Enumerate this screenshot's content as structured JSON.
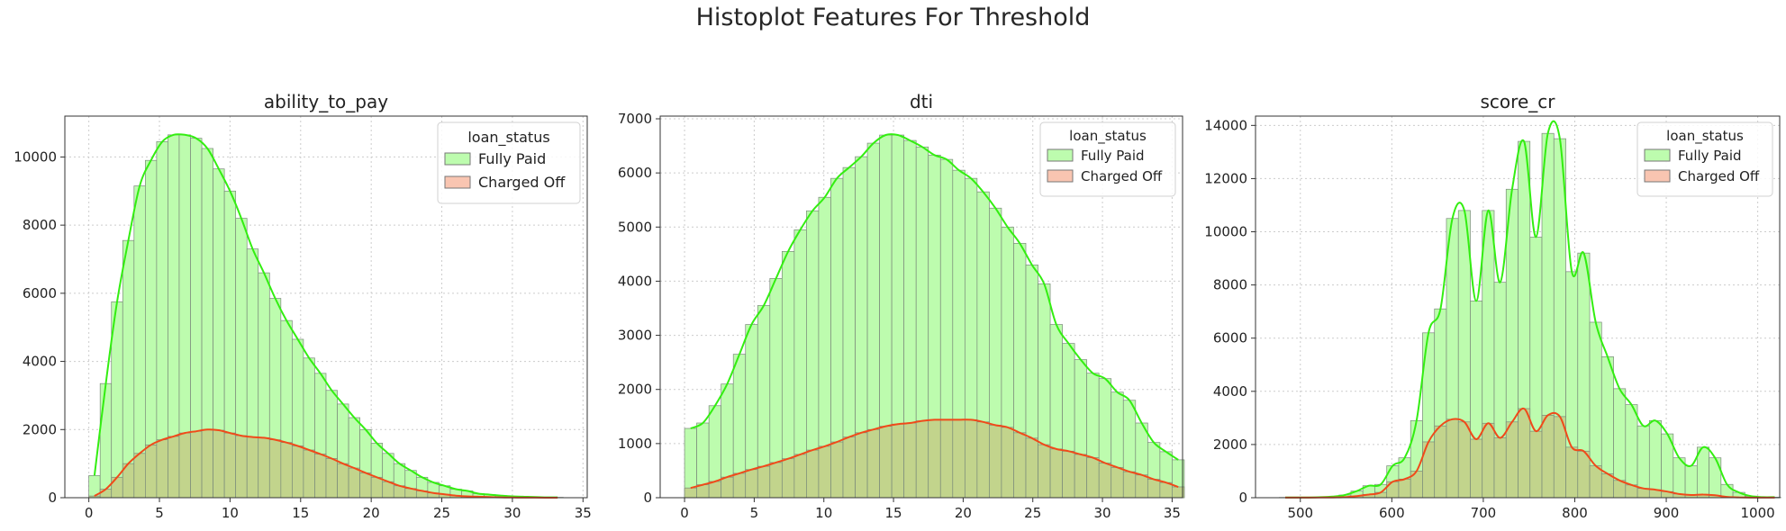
{
  "figure": {
    "title": "Histoplot Features For Threshold"
  },
  "colors": {
    "fully_paid_fill": "#bdfcae",
    "fully_paid_line": "#33ee11",
    "charged_off_fill": "#f9c5b1",
    "charged_off_line": "#f04a1a",
    "overlap_fill": "#c2d48c",
    "bar_edge": "#7a8a7a",
    "grid": "#cccccc"
  },
  "chart_data": [
    {
      "type": "histogram",
      "title": "ability_to_pay",
      "xlabel": "",
      "ylabel": "",
      "xlim": [
        -1.7,
        35.3
      ],
      "ylim": [
        0,
        11200
      ],
      "xticks": [
        0,
        5,
        10,
        15,
        20,
        25,
        30,
        35
      ],
      "yticks": [
        0,
        2000,
        4000,
        6000,
        8000,
        10000
      ],
      "bin_start": 0,
      "bin_width": 0.8,
      "grid": true,
      "legend": {
        "title": "loan_status",
        "placement": "upper right",
        "entries": [
          "Fully Paid",
          "Charged Off"
        ]
      },
      "series": [
        {
          "name": "Fully Paid",
          "values": [
            650,
            3350,
            5750,
            7550,
            9150,
            9900,
            10450,
            10650,
            10650,
            10550,
            10250,
            9650,
            9000,
            8200,
            7300,
            6600,
            5850,
            5200,
            4650,
            4100,
            3650,
            3150,
            2750,
            2350,
            2000,
            1600,
            1300,
            1000,
            800,
            600,
            450,
            350,
            250,
            200,
            120,
            90,
            60,
            40,
            30,
            20,
            10,
            10
          ]
        },
        {
          "name": "Charged Off",
          "values": [
            50,
            250,
            600,
            1000,
            1300,
            1550,
            1700,
            1800,
            1900,
            1950,
            2000,
            1980,
            1900,
            1820,
            1780,
            1760,
            1700,
            1620,
            1520,
            1400,
            1280,
            1150,
            1000,
            870,
            730,
            600,
            470,
            350,
            270,
            200,
            140,
            100,
            60,
            40,
            30,
            20,
            10,
            5,
            3,
            2,
            1,
            1
          ]
        }
      ]
    },
    {
      "type": "histogram",
      "title": "dti",
      "xlabel": "",
      "ylabel": "",
      "xlim": [
        -1.75,
        35.75
      ],
      "ylim": [
        0,
        7050
      ],
      "xticks": [
        0,
        5,
        10,
        15,
        20,
        25,
        30,
        35
      ],
      "yticks": [
        0,
        1000,
        2000,
        3000,
        4000,
        5000,
        6000,
        7000
      ],
      "bin_start": 0,
      "bin_width": 0.875,
      "grid": true,
      "legend": {
        "title": "loan_status",
        "placement": "upper right",
        "entries": [
          "Fully Paid",
          "Charged Off"
        ]
      },
      "series": [
        {
          "name": "Fully Paid",
          "values": [
            1280,
            1380,
            1700,
            2100,
            2650,
            3200,
            3550,
            4050,
            4550,
            4950,
            5300,
            5550,
            5900,
            6100,
            6300,
            6550,
            6700,
            6700,
            6600,
            6480,
            6330,
            6250,
            6050,
            5900,
            5650,
            5350,
            5000,
            4700,
            4300,
            3950,
            3200,
            2850,
            2550,
            2300,
            2200,
            1950,
            1800,
            1380,
            1020,
            850,
            700
          ]
        },
        {
          "name": "Charged Off",
          "values": [
            180,
            240,
            300,
            380,
            450,
            520,
            580,
            650,
            720,
            800,
            880,
            950,
            1030,
            1120,
            1200,
            1260,
            1320,
            1360,
            1380,
            1420,
            1440,
            1440,
            1440,
            1440,
            1400,
            1340,
            1300,
            1200,
            1100,
            980,
            900,
            860,
            800,
            740,
            640,
            560,
            480,
            420,
            340,
            280,
            200
          ]
        }
      ]
    },
    {
      "type": "histogram",
      "title": "score_cr",
      "xlabel": "",
      "ylabel": "",
      "xlim": [
        451,
        1024
      ],
      "ylim": [
        0,
        14350
      ],
      "xticks": [
        500,
        600,
        700,
        800,
        900,
        1000
      ],
      "yticks": [
        0,
        2000,
        4000,
        6000,
        8000,
        10000,
        12000,
        14000
      ],
      "bin_start": 477,
      "bin_width": 13.05,
      "grid": true,
      "legend": {
        "title": "loan_status",
        "placement": "upper right",
        "entries": [
          "Fully Paid",
          "Charged Off"
        ]
      },
      "series": [
        {
          "name": "Fully Paid",
          "values": [
            10,
            10,
            10,
            20,
            40,
            100,
            250,
            450,
            500,
            1200,
            1500,
            2900,
            6200,
            7100,
            10500,
            10800,
            7400,
            10800,
            8100,
            11600,
            13400,
            9800,
            13700,
            13500,
            8500,
            9200,
            6600,
            5300,
            4100,
            3500,
            2700,
            2900,
            2400,
            1500,
            1200,
            1900,
            1500,
            500,
            200,
            60,
            20,
            20
          ]
        },
        {
          "name": "Charged Off",
          "values": [
            2,
            3,
            5,
            8,
            10,
            20,
            60,
            120,
            200,
            600,
            700,
            1000,
            2100,
            2700,
            2950,
            2850,
            2200,
            2800,
            2250,
            2850,
            3350,
            2500,
            3100,
            3050,
            1900,
            1750,
            1200,
            900,
            650,
            480,
            350,
            300,
            230,
            140,
            100,
            120,
            90,
            30,
            15,
            5,
            3,
            2
          ]
        }
      ]
    }
  ]
}
